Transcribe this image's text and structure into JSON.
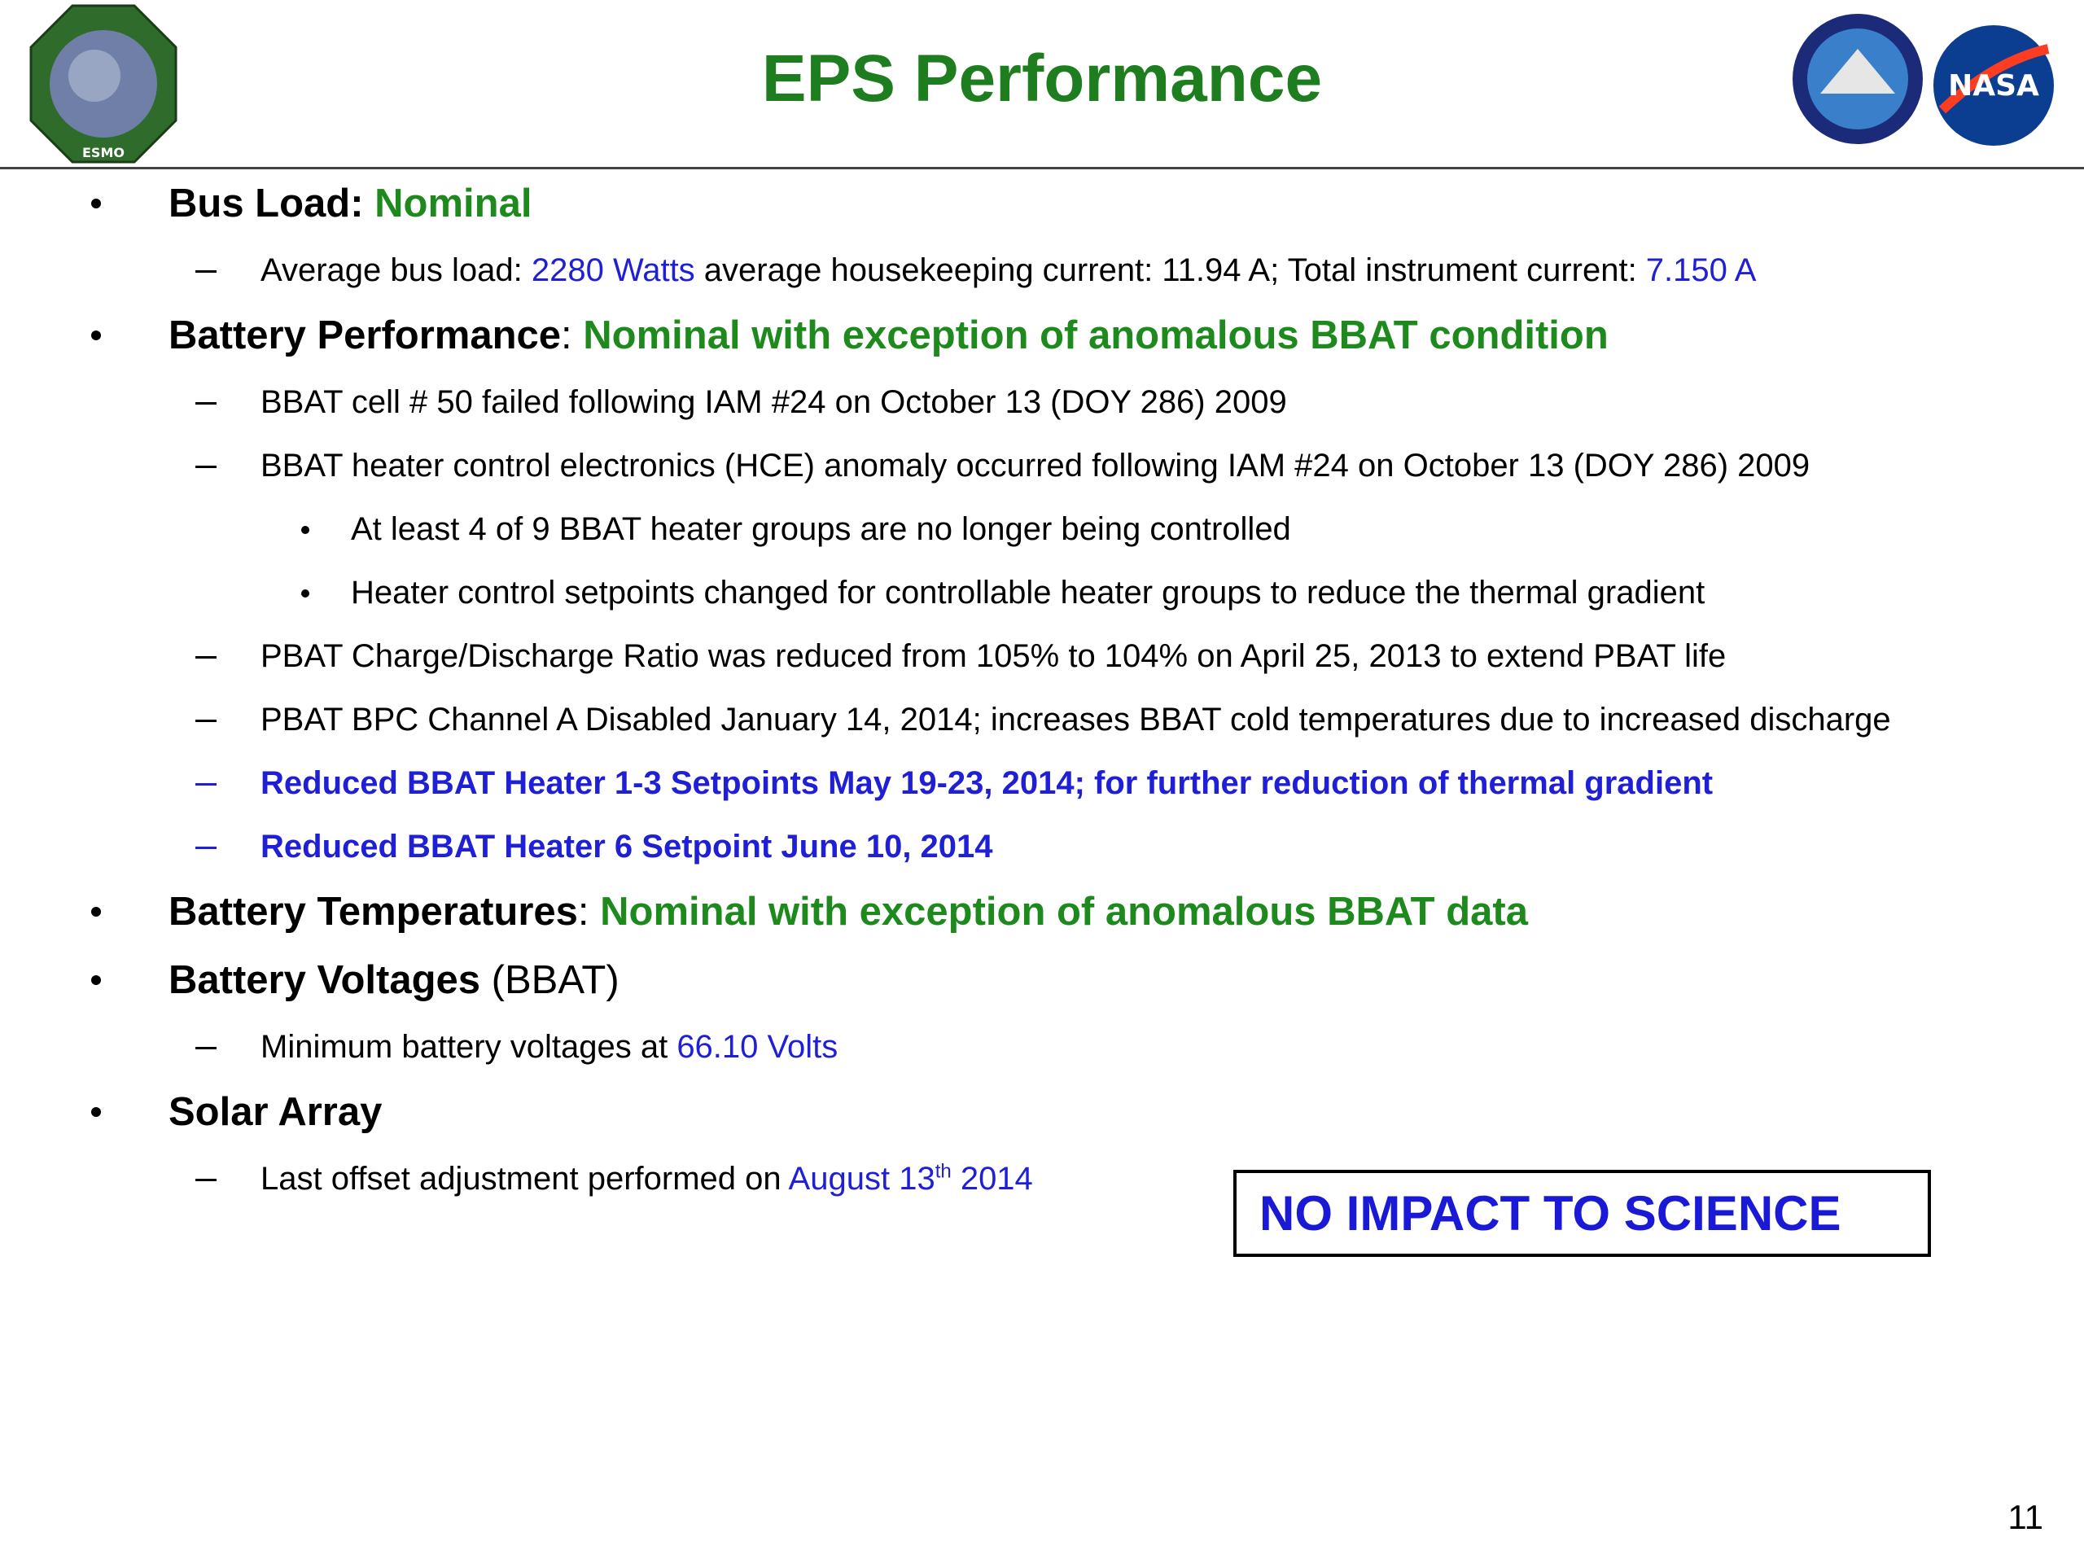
{
  "header": {
    "title": "EPS Performance",
    "logos": [
      "ESMO",
      "NASA"
    ]
  },
  "bullets": [
    {
      "runs": [
        {
          "text": "Bus Load: ",
          "style": "bold"
        },
        {
          "text": "Nominal",
          "style": "green-bold"
        }
      ],
      "sub": [
        {
          "runs": [
            {
              "text": "Average bus load: ",
              "style": "plain"
            },
            {
              "text": "2280 Watts",
              "style": "blue"
            },
            {
              "text": " average housekeeping current: 11.94 A; Total instrument current: ",
              "style": "plain"
            },
            {
              "text": "7.150 A",
              "style": "blue"
            }
          ]
        }
      ]
    },
    {
      "runs": [
        {
          "text": "Battery Performance",
          "style": "bold"
        },
        {
          "text": ": ",
          "style": "plain"
        },
        {
          "text": "Nominal with exception of anomalous BBAT condition",
          "style": "green-bold"
        }
      ],
      "sub": [
        {
          "runs": [
            {
              "text": "BBAT cell # 50 failed following IAM #24 on October 13 (DOY 286) 2009",
              "style": "plain"
            }
          ]
        },
        {
          "runs": [
            {
              "text": "BBAT heater control electronics (HCE) anomaly occurred following IAM #24 on October 13 (DOY 286) 2009",
              "style": "plain"
            }
          ],
          "sub": [
            {
              "runs": [
                {
                  "text": "At least 4 of 9 BBAT heater groups are no longer being controlled",
                  "style": "plain"
                }
              ]
            },
            {
              "runs": [
                {
                  "text": "Heater control setpoints changed for controllable heater groups to reduce the thermal gradient",
                  "style": "plain"
                }
              ]
            }
          ]
        },
        {
          "runs": [
            {
              "text": "PBAT Charge/Discharge Ratio was reduced from 105% to 104% on April 25, 2013 to extend PBAT life",
              "style": "plain"
            }
          ]
        },
        {
          "runs": [
            {
              "text": "PBAT BPC Channel A Disabled January 14, 2014; increases BBAT cold temperatures due to increased discharge",
              "style": "plain"
            }
          ]
        },
        {
          "runs": [
            {
              "text": "Reduced BBAT Heater 1-3 Setpoints May 19-23, 2014; for further reduction of thermal gradient",
              "style": "blue-bold"
            }
          ]
        },
        {
          "runs": [
            {
              "text": "Reduced BBAT Heater 6 Setpoint June 10, 2014",
              "style": "blue-bold"
            }
          ]
        }
      ]
    },
    {
      "runs": [
        {
          "text": "Battery Temperatures",
          "style": "bold"
        },
        {
          "text": ": ",
          "style": "plain"
        },
        {
          "text": "Nominal with exception of anomalous BBAT data",
          "style": "green-bold"
        }
      ]
    },
    {
      "runs": [
        {
          "text": "Battery Voltages",
          "style": "bold"
        },
        {
          "text": " (BBAT)",
          "style": "plain"
        }
      ],
      "sub": [
        {
          "runs": [
            {
              "text": "Minimum battery voltages at ",
              "style": "plain"
            },
            {
              "text": "66.10 Volts",
              "style": "blue"
            }
          ]
        }
      ]
    },
    {
      "runs": [
        {
          "text": "Solar Array",
          "style": "bold"
        }
      ],
      "sub": [
        {
          "runs": [
            {
              "text": "Last offset adjustment performed on ",
              "style": "plain"
            },
            {
              "text": "August 13",
              "style": "blue"
            },
            {
              "text": "th",
              "style": "blue-sup"
            },
            {
              "text": " 2014",
              "style": "blue"
            }
          ]
        }
      ]
    }
  ],
  "callout": "NO IMPACT TO SCIENCE",
  "page_number": "11"
}
